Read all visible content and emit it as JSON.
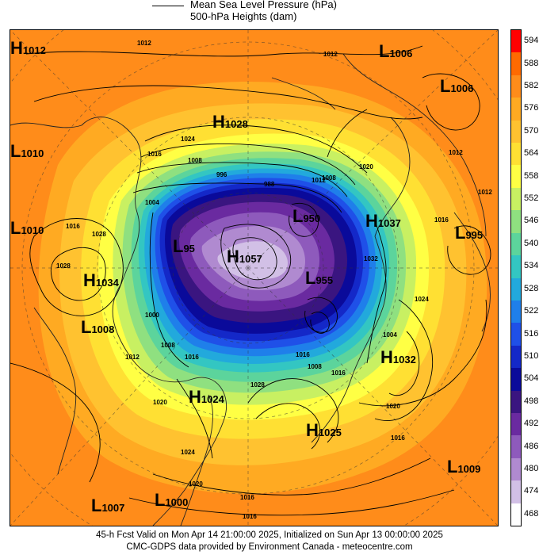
{
  "header": {
    "line1": "Mean Sea Level Pressure (hPa)",
    "line2": "500-hPa Heights (dam)"
  },
  "colorbar": {
    "levels": [
      "594",
      "588",
      "582",
      "576",
      "570",
      "564",
      "558",
      "552",
      "546",
      "540",
      "534",
      "528",
      "522",
      "516",
      "510",
      "504",
      "498",
      "492",
      "486",
      "480",
      "474",
      "468"
    ],
    "colors": [
      "#ff0000",
      "#ff6a00",
      "#ff8c1a",
      "#ffaa22",
      "#ffc230",
      "#ffe033",
      "#ffff44",
      "#c8f062",
      "#8fe080",
      "#5cd49c",
      "#33c6c2",
      "#22a9dc",
      "#1f7fea",
      "#1f50e8",
      "#1428c8",
      "#0a0a9a",
      "#3a1580",
      "#6a2aa0",
      "#8e5abc",
      "#b08ad0",
      "#d2c0e6",
      "#ffffff"
    ]
  },
  "systems": [
    {
      "type": "H",
      "value": "1012"
    },
    {
      "type": "L",
      "value": "1006"
    },
    {
      "type": "L",
      "value": "1006"
    },
    {
      "type": "H",
      "value": "1028"
    },
    {
      "type": "L",
      "value": "1010"
    },
    {
      "type": "L",
      "value": "1010"
    },
    {
      "type": "H",
      "value": "1037"
    },
    {
      "type": "L",
      "value": "995"
    },
    {
      "type": "H",
      "value": "1034"
    },
    {
      "type": "L",
      "value": "95"
    },
    {
      "type": "H",
      "value": "1057"
    },
    {
      "type": "L",
      "value": "950"
    },
    {
      "type": "L",
      "value": "955"
    },
    {
      "type": "L",
      "value": "1008"
    },
    {
      "type": "H",
      "value": "1032"
    },
    {
      "type": "H",
      "value": "1024"
    },
    {
      "type": "H",
      "value": "1025"
    },
    {
      "type": "L",
      "value": "1009"
    },
    {
      "type": "L",
      "value": "1007"
    },
    {
      "type": "L",
      "value": "1000"
    }
  ],
  "isobar_labels": [
    "1012",
    "1012",
    "1024",
    "1016",
    "1008",
    "996",
    "988",
    "1012",
    "1028",
    "1004",
    "1008",
    "1016",
    "1028",
    "1020",
    "1012",
    "1016",
    "1024",
    "1032",
    "1000",
    "1008",
    "1012",
    "1016",
    "1016",
    "1020",
    "1020",
    "1028",
    "1016",
    "1024",
    "1016",
    "1016",
    "1004",
    "1008",
    "1016",
    "1020",
    "1012"
  ],
  "footer": {
    "line1": "45-h Fcst Valid on Mon Apr 14 21:00:00 2025, Initialized on Sun Apr 13 00:00:00 2025",
    "line2": "CMC-GDPS data provided by Environment Canada - meteocentre.com"
  }
}
